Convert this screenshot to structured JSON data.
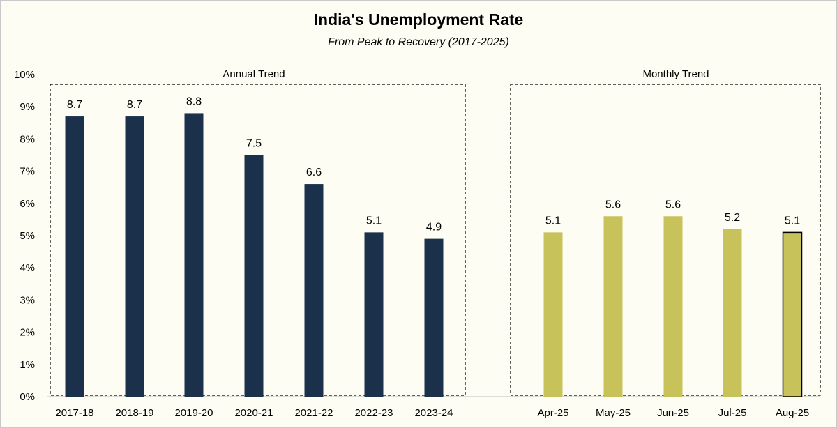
{
  "title": "India's Unemployment Rate",
  "subtitle": "From Peak to Recovery (2017-2025)",
  "colors": {
    "annual": "#1b314b",
    "monthly": "#c8c25a",
    "background": "#fdfdf3"
  },
  "chart_data": [
    {
      "type": "bar",
      "title": "Annual Trend",
      "categories": [
        "2017-18",
        "2018-19",
        "2019-20",
        "2020-21",
        "2021-22",
        "2022-23",
        "2023-24"
      ],
      "values": [
        8.7,
        8.7,
        8.8,
        7.5,
        6.6,
        5.1,
        4.9
      ],
      "data_labels": [
        "8.7",
        "8.7",
        "8.8",
        "7.5",
        "6.6",
        "5.1",
        "4.9"
      ],
      "ylim": [
        0,
        10
      ],
      "yticks": [
        "0%",
        "1%",
        "2%",
        "3%",
        "4%",
        "5%",
        "6%",
        "7%",
        "8%",
        "9%",
        "10%"
      ],
      "ylabel": "",
      "xlabel": "",
      "color": "#1b314b",
      "grid": false,
      "highlight_border": "dashed"
    },
    {
      "type": "bar",
      "title": "Monthly Trend",
      "categories": [
        "Apr-25",
        "May-25",
        "Jun-25",
        "Jul-25",
        "Aug-25"
      ],
      "values": [
        5.1,
        5.6,
        5.6,
        5.2,
        5.1
      ],
      "data_labels": [
        "5.1",
        "5.6",
        "5.6",
        "5.2",
        "5.1"
      ],
      "ylim": [
        0,
        10
      ],
      "color": "#c8c25a",
      "grid": false,
      "highlight_border": "dashed",
      "emphasized_category": "Aug-25"
    }
  ]
}
